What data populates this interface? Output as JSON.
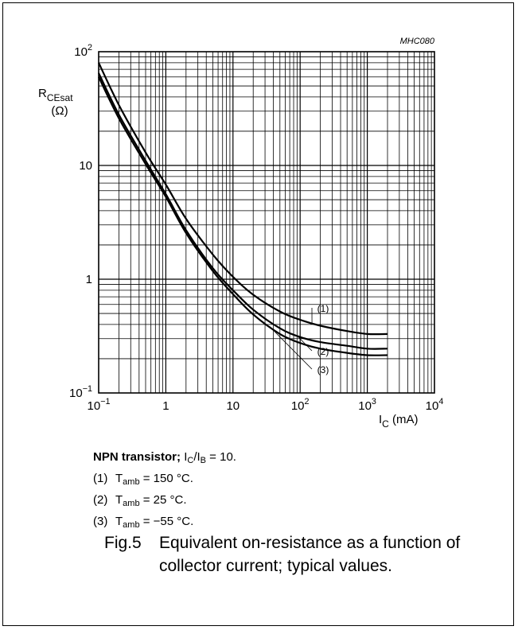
{
  "chart_data": {
    "type": "line",
    "code": "MHC080",
    "x_scale": "log",
    "y_scale": "log",
    "xlim": [
      0.1,
      10000
    ],
    "ylim": [
      0.1,
      100
    ],
    "grid": true,
    "x_ticks": [
      {
        "value": 0.1,
        "base": "10",
        "exp": "−1"
      },
      {
        "value": 1,
        "base": "1",
        "exp": ""
      },
      {
        "value": 10,
        "base": "10",
        "exp": ""
      },
      {
        "value": 100,
        "base": "10",
        "exp": "2"
      },
      {
        "value": 1000,
        "base": "10",
        "exp": "3"
      },
      {
        "value": 10000,
        "base": "10",
        "exp": "4"
      }
    ],
    "y_ticks": [
      {
        "value": 0.1,
        "base": "10",
        "exp": "−1"
      },
      {
        "value": 1,
        "base": "1",
        "exp": ""
      },
      {
        "value": 10,
        "base": "10",
        "exp": ""
      },
      {
        "value": 100,
        "base": "10",
        "exp": "2"
      }
    ],
    "ylabel": {
      "main": "R",
      "sub": "CEsat",
      "unit": "(Ω)"
    },
    "xlabel": {
      "main": "I",
      "sub": "C",
      "unit": "(mA)"
    },
    "series": [
      {
        "label": "(1)",
        "x": [
          0.1,
          0.2,
          0.5,
          1,
          2,
          5,
          10,
          20,
          50,
          100,
          200,
          500,
          1000,
          2000
        ],
        "y": [
          80,
          34,
          13,
          6.8,
          3.4,
          1.65,
          1.05,
          0.73,
          0.52,
          0.44,
          0.39,
          0.35,
          0.33,
          0.33
        ]
      },
      {
        "label": "(2)",
        "x": [
          0.1,
          0.2,
          0.5,
          1,
          2,
          5,
          10,
          20,
          50,
          100,
          200,
          500,
          1000,
          2000
        ],
        "y": [
          65,
          28,
          11,
          5.6,
          2.7,
          1.25,
          0.8,
          0.54,
          0.37,
          0.31,
          0.28,
          0.26,
          0.245,
          0.245
        ]
      },
      {
        "label": "(3)",
        "x": [
          0.1,
          0.2,
          0.5,
          1,
          2,
          5,
          10,
          20,
          50,
          100,
          200,
          500,
          1000,
          2000
        ],
        "y": [
          60,
          26,
          10.3,
          5.3,
          2.55,
          1.18,
          0.74,
          0.49,
          0.33,
          0.275,
          0.245,
          0.225,
          0.215,
          0.215
        ]
      }
    ],
    "colors": {
      "line": "#000000",
      "grid": "#000000"
    }
  },
  "caption": {
    "condition": {
      "bold": "NPN transistor;",
      "i1": "I",
      "s1": "C",
      "slash": "/I",
      "s2": "B",
      "rest": " = 10."
    },
    "notes": [
      {
        "num": "(1)",
        "t": "T",
        "sub": "amb",
        "text": " = 150 °C."
      },
      {
        "num": "(2)",
        "t": "T",
        "sub": "amb",
        "text": " = 25 °C."
      },
      {
        "num": "(3)",
        "t": "T",
        "sub": "amb",
        "text": " = −55 °C."
      }
    ],
    "figure_number": "Fig.5",
    "figure_text": "Equivalent on-resistance as a function of collector current; typical values."
  }
}
